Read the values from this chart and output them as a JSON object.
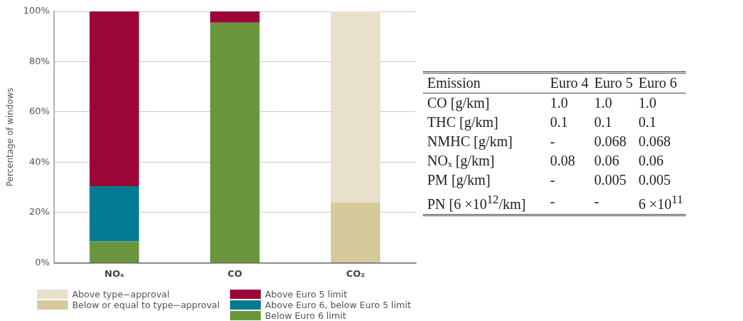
{
  "chart_data": [
    {
      "type": "bar",
      "ylabel": "Percentage of windows",
      "categories": [
        "NOₓ",
        "CO",
        "CO₂"
      ],
      "stacked": true,
      "ylim": [
        0,
        100
      ],
      "yticks": [
        {
          "value": 0,
          "label": "0%"
        },
        {
          "value": 20,
          "label": "20%"
        },
        {
          "value": 40,
          "label": "40%"
        },
        {
          "value": 60,
          "label": "60%"
        },
        {
          "value": 80,
          "label": "80%"
        },
        {
          "value": 100,
          "label": "100%"
        }
      ],
      "grid": "y",
      "legend": "bottom",
      "series": [
        {
          "name": "Below Euro 6 limit",
          "color": "#6b953c",
          "values": [
            8.5,
            95.5,
            null
          ]
        },
        {
          "name": "Above Euro 6, below Euro 5 limit",
          "color": "#007b91",
          "values": [
            22,
            null,
            null
          ]
        },
        {
          "name": "Above Euro 5 limit",
          "color": "#9b0538",
          "values": [
            69.5,
            4.5,
            null
          ]
        },
        {
          "name": "Below or equal to type−approval",
          "color": "#d6c99b",
          "values": [
            null,
            null,
            24
          ]
        },
        {
          "name": "Above type−approval",
          "color": "#e8e0cb",
          "values": [
            null,
            null,
            76
          ]
        }
      ]
    },
    {
      "type": "other",
      "annotations": [
        "Emission",
        "Euro 4",
        "Euro 5",
        "Euro 6",
        "CO [g/km]",
        "1.0",
        "1.0",
        "1.0",
        "THC [g/km]",
        "0.1",
        "0.1",
        "0.1",
        "NMHC [g/km]",
        "-",
        "0.068",
        "0.068",
        "NOₓ [g/km]",
        "0.08",
        "0.06",
        "0.06",
        "PM [g/km]",
        "-",
        "0.005",
        "0.005",
        "PN [6 ×10$^{12}$/km]",
        "-",
        "-",
        "6 ×10$^{11}$"
      ]
    }
  ]
}
